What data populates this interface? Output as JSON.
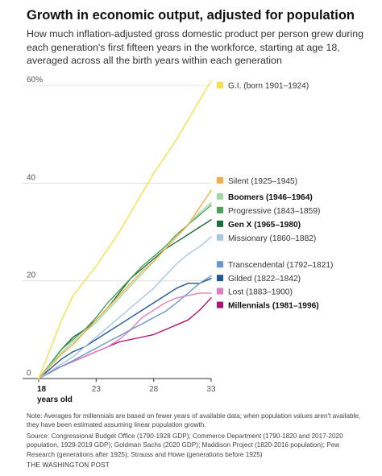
{
  "chart_data": {
    "type": "line",
    "title": "Growth in economic output, adjusted for population",
    "subtitle": "How much inflation-adjusted gross domestic product per person grew during each generation's first fifteen years in the workforce, starting at age 18, averaged across all the birth years within each generation",
    "xlabel": "years old",
    "x_ticks": [
      "18",
      "23",
      "28",
      "33"
    ],
    "y_ticks": [
      "0",
      "20",
      "40",
      "60%"
    ],
    "xlim": [
      18,
      33
    ],
    "ylim": [
      0,
      62
    ],
    "x": [
      18,
      19,
      20,
      21,
      22,
      23,
      24,
      25,
      26,
      27,
      28,
      29,
      30,
      31,
      32,
      33
    ],
    "series": [
      {
        "name": "G.I. (born 1901–1924)",
        "color": "#f7e04a",
        "bold": false,
        "label_y": 60,
        "values": [
          0,
          6,
          12,
          17,
          20,
          23,
          26.5,
          30,
          34,
          38,
          42,
          45.5,
          49,
          53,
          57,
          61
        ]
      },
      {
        "name": "Silent (1925–1945)",
        "color": "#f2ae4b",
        "bold": false,
        "label_y": 40.5,
        "values": [
          0,
          2.5,
          5,
          7,
          9.5,
          12,
          14.5,
          17,
          19.5,
          22,
          24,
          26.5,
          29,
          31.5,
          35,
          38.5
        ]
      },
      {
        "name": "Boomers (1946–1964)",
        "color": "#a2d8a1",
        "bold": true,
        "label_y": 37.2,
        "values": [
          0,
          2.8,
          5.3,
          7.5,
          9.5,
          11.5,
          14,
          16.5,
          19,
          21.5,
          24,
          26.5,
          29,
          31.5,
          34,
          36
        ]
      },
      {
        "name": "Progressive (1843–1859)",
        "color": "#48a056",
        "bold": false,
        "label_y": 34.4,
        "values": [
          0,
          3,
          6,
          8,
          10,
          12.5,
          15.5,
          18,
          20.5,
          23,
          25,
          27,
          29.5,
          31.5,
          33.5,
          35.5
        ]
      },
      {
        "name": "Gen X (1965–1980)",
        "color": "#1a6e3b",
        "bold": true,
        "label_y": 31.6,
        "values": [
          0,
          3,
          6,
          8.5,
          10,
          12,
          14.5,
          17.5,
          20.5,
          22.5,
          24.5,
          26.5,
          28,
          29.5,
          31,
          32.5
        ]
      },
      {
        "name": "Missionary (1860–1882)",
        "color": "#a9c5e6",
        "bold": false,
        "label_y": 28.8,
        "values": [
          0,
          1.5,
          3,
          4.5,
          6.5,
          8.5,
          10.5,
          12.5,
          14.5,
          16.5,
          18.5,
          21,
          23.5,
          25.5,
          27,
          29
        ]
      },
      {
        "name": "Transcendental (1792–1821)",
        "color": "#6b98cc",
        "bold": false,
        "label_y": 23.3,
        "values": [
          0,
          1.2,
          2.5,
          3.7,
          5,
          6.2,
          7.5,
          8.7,
          10,
          11.2,
          12.5,
          13.7,
          15.5,
          17.5,
          19.5,
          21
        ]
      },
      {
        "name": "Gilded (1822–1842)",
        "color": "#1f5a94",
        "bold": false,
        "label_y": 20.5,
        "values": [
          0,
          2,
          4,
          5.5,
          6.5,
          8,
          9.5,
          11,
          12.5,
          14,
          15.5,
          17,
          18.5,
          19.5,
          19.5,
          20.5
        ]
      },
      {
        "name": "Lost (1883–1900)",
        "color": "#e07fc0",
        "bold": false,
        "label_y": 17.8,
        "values": [
          0,
          1.5,
          2.5,
          3.5,
          4.5,
          5.5,
          6.5,
          8,
          10,
          12.5,
          14,
          15.5,
          16.5,
          17,
          17.5,
          17.5
        ]
      },
      {
        "name": "Millennials (1981–1996)",
        "color": "#b0127a",
        "bold": true,
        "label_y": 15,
        "values": [
          0,
          1.5,
          2.5,
          3.5,
          4.5,
          5.5,
          6.5,
          7.5,
          8,
          8.5,
          9,
          10,
          11,
          12,
          14,
          16.5
        ]
      }
    ]
  },
  "note": "Note: Averages for millennials are based on fewer years of available data; when population values aren't available, they have been estimated assuming linear population growth.",
  "source": "Source: Congressional Budget Office (1790-1928 GDP); Commerce Department (1790-1820 and 2017-2020 population, 1929-2019 GDP); Goldman Sachs (2020 GDP); Maddison Project (1820-2016 population); Pew Research (generations after 1925); Strauss and Howe (generations before 1925)",
  "credit": "THE WASHINGTON POST"
}
